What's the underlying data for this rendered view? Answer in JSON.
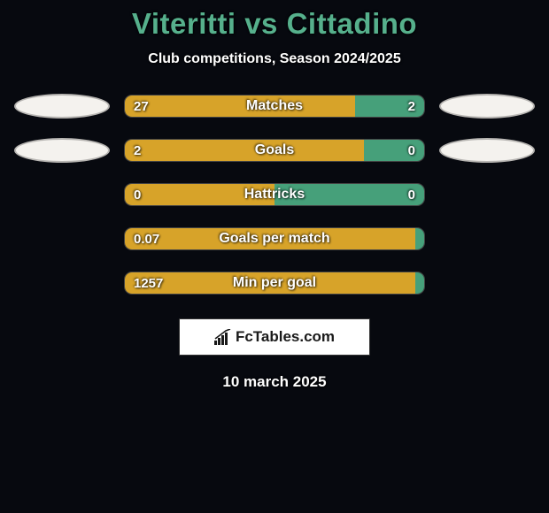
{
  "background_color": "#07090f",
  "title": {
    "player1": "Viteritti",
    "vs": "vs",
    "player2": "Cittadino",
    "color": "#56b08c",
    "fontsize": 33
  },
  "subtitle": "Club competitions, Season 2024/2025",
  "left_color": "#d7a329",
  "right_color": "#46a07a",
  "ellipse_color": "#f4f2ee",
  "stats": [
    {
      "label": "Matches",
      "left_val": "27",
      "right_val": "2",
      "left_pct": 77,
      "show_ellipses": true
    },
    {
      "label": "Goals",
      "left_val": "2",
      "right_val": "0",
      "left_pct": 80,
      "show_ellipses": true
    },
    {
      "label": "Hattricks",
      "left_val": "0",
      "right_val": "0",
      "left_pct": 50,
      "show_ellipses": false
    },
    {
      "label": "Goals per match",
      "left_val": "0.07",
      "right_val": "",
      "left_pct": 100,
      "show_ellipses": false
    },
    {
      "label": "Min per goal",
      "left_val": "1257",
      "right_val": "",
      "left_pct": 100,
      "show_ellipses": false
    }
  ],
  "logo": {
    "text_prefix": "Fc",
    "text_suffix": "Tables.com"
  },
  "date": "10 march 2025"
}
